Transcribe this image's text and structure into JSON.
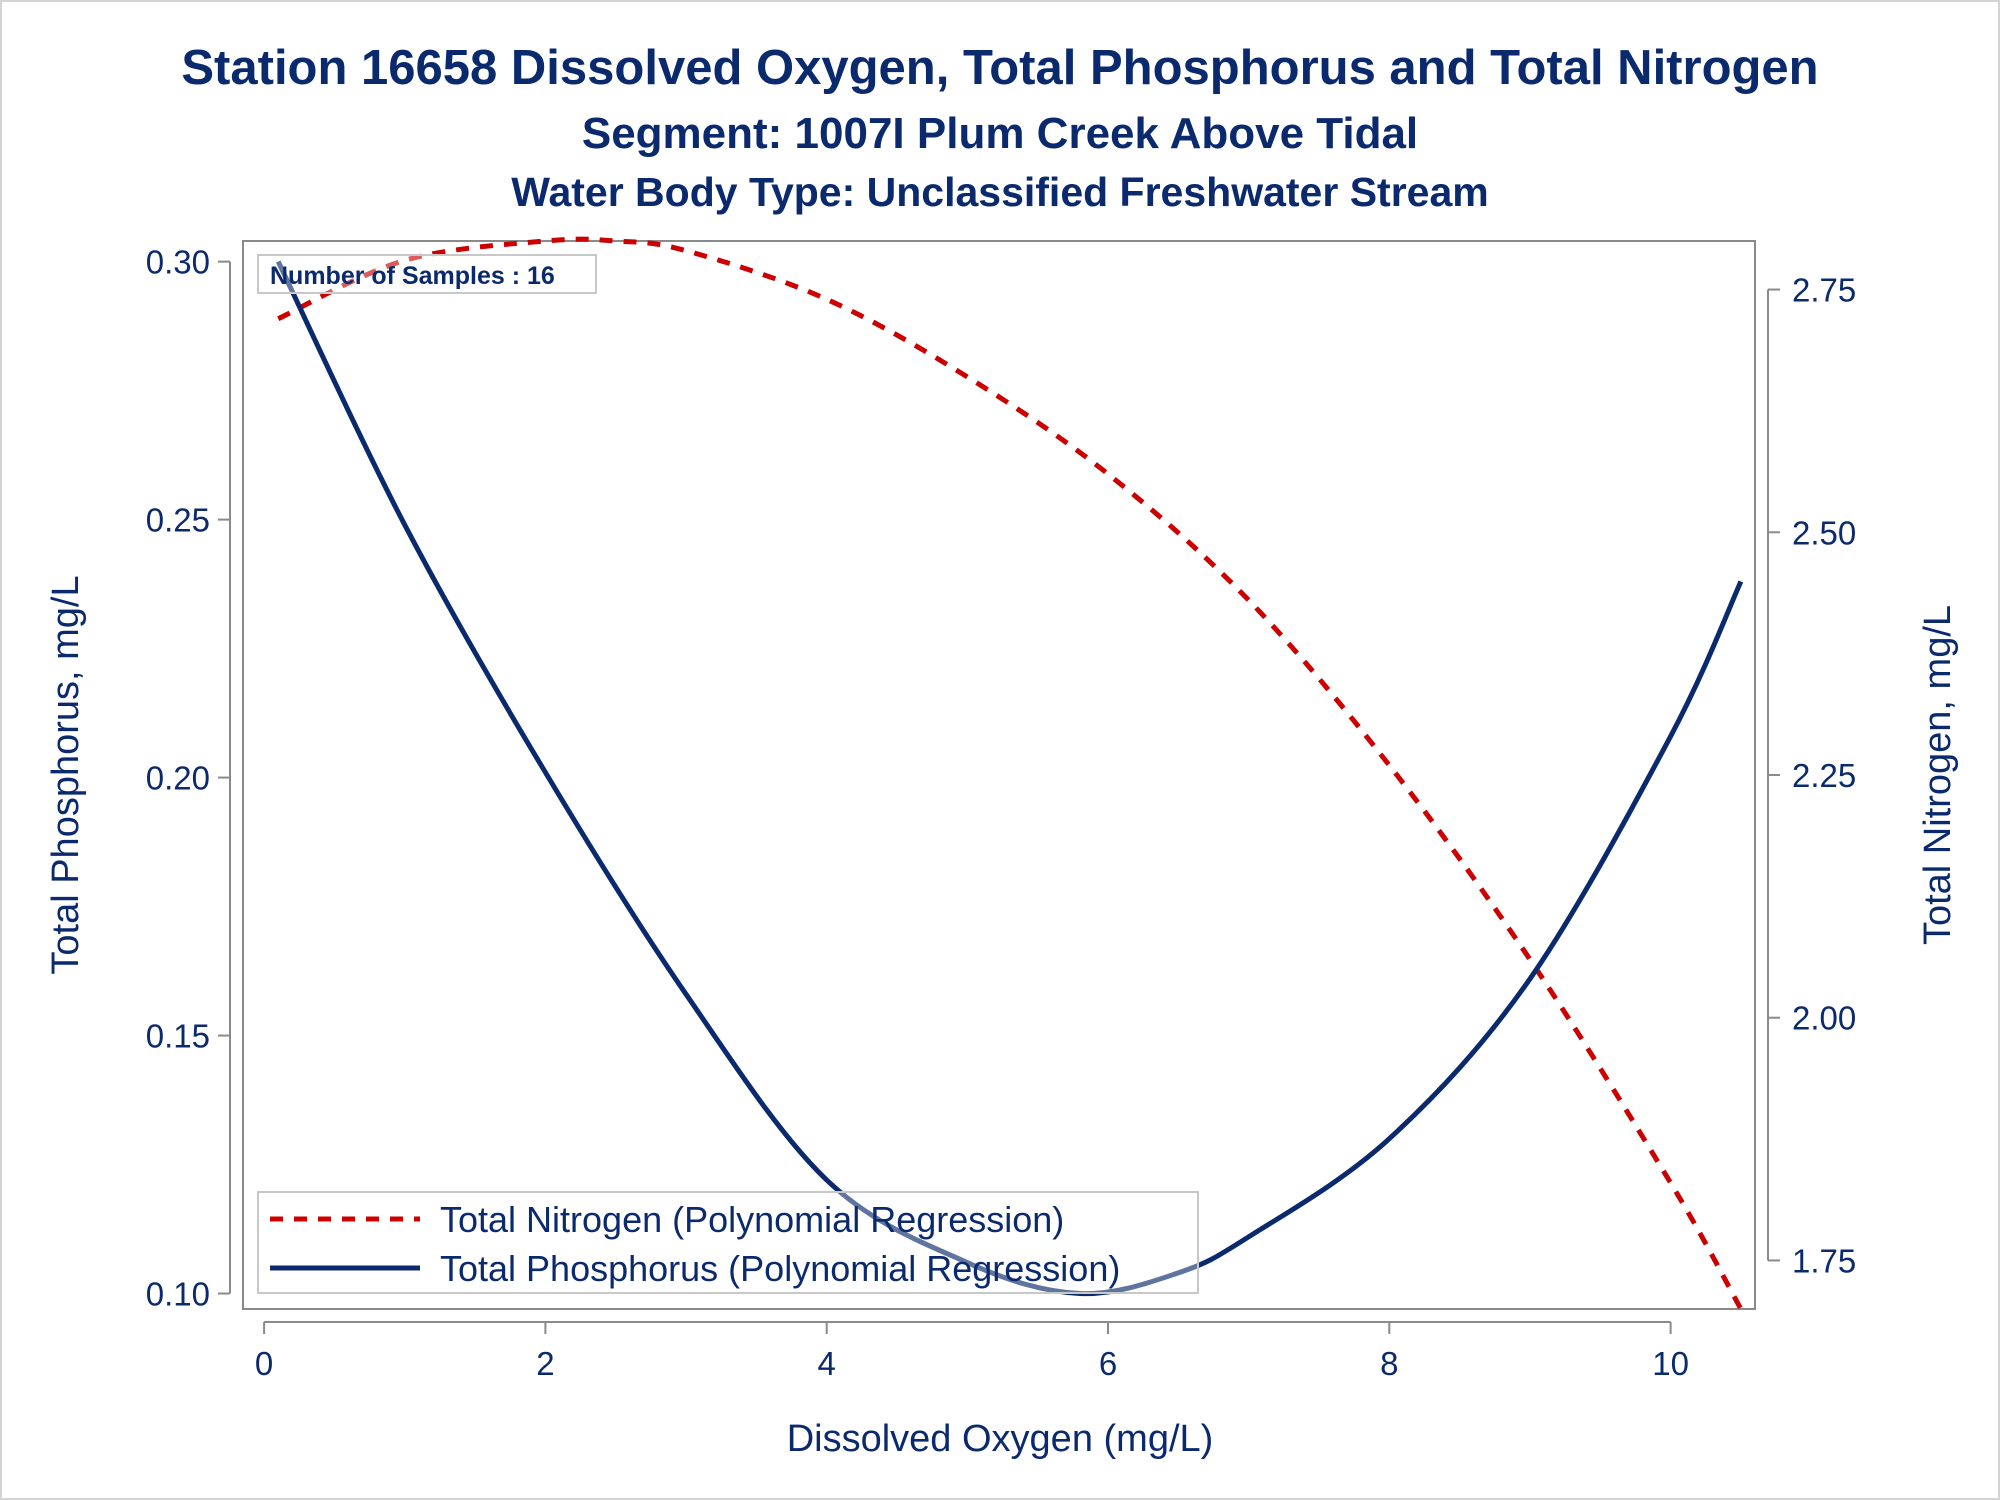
{
  "titles": {
    "line1": "Station 16658  Dissolved Oxygen, Total Phosphorus and Total Nitrogen",
    "line2": "Segment: 1007I  Plum Creek Above Tidal",
    "line3": "Water Body Type: Unclassified Freshwater Stream"
  },
  "inset_label": "Number of Samples : 16",
  "colors": {
    "text": "#0b2a6e",
    "phosphorus": "#0b2a6e",
    "nitrogen": "#cc0000",
    "axis": "#8a8a8a"
  },
  "chart_data": {
    "type": "line",
    "xlabel": "Dissolved Oxygen (mg/L)",
    "ylabel_left": "Total Phosphorus, mg/L",
    "ylabel_right": "Total Nitrogen, mg/L",
    "xlim": [
      -0.15,
      10.6
    ],
    "ylim_left": [
      0.097,
      0.304
    ],
    "ylim_right": [
      1.7,
      2.8
    ],
    "x_ticks": [
      0,
      2,
      4,
      6,
      8,
      10
    ],
    "y_ticks_left": [
      "0.10",
      "0.15",
      "0.20",
      "0.25",
      "0.30"
    ],
    "y_ticks_right": [
      "1.75",
      "2.00",
      "2.25",
      "2.50",
      "2.75"
    ],
    "grid": false,
    "legend_position": "bottom-left",
    "series": [
      {
        "name": "Total Nitrogen (Polynomial Regression)",
        "axis": "right",
        "style": "dashed",
        "x": [
          0.1,
          1.0,
          2.0,
          2.5,
          3.0,
          4.0,
          5.0,
          6.0,
          7.0,
          8.0,
          9.0,
          10.0,
          10.5
        ],
        "y": [
          2.72,
          2.78,
          2.8,
          2.8,
          2.79,
          2.74,
          2.66,
          2.56,
          2.43,
          2.26,
          2.06,
          1.83,
          1.7
        ]
      },
      {
        "name": "Total Phosphorus (Polynomial Regression)",
        "axis": "left",
        "style": "solid",
        "x": [
          0.1,
          1.0,
          2.0,
          3.0,
          4.0,
          5.0,
          5.8,
          6.5,
          7.0,
          8.0,
          9.0,
          10.0,
          10.5
        ],
        "y": [
          0.3,
          0.249,
          0.201,
          0.158,
          0.122,
          0.106,
          0.1,
          0.104,
          0.111,
          0.13,
          0.161,
          0.208,
          0.238
        ]
      }
    ]
  }
}
